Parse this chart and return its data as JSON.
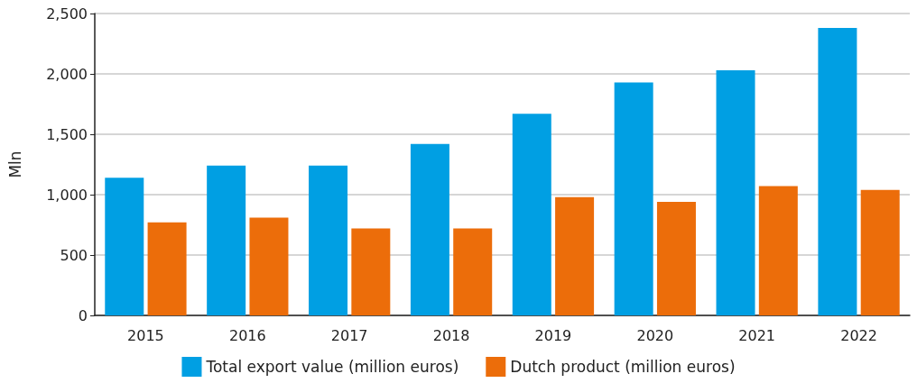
{
  "chart_data": {
    "type": "bar",
    "ylabel": "Mln",
    "categories": [
      "2015",
      "2016",
      "2017",
      "2018",
      "2019",
      "2020",
      "2021",
      "2022"
    ],
    "series": [
      {
        "name": "Total export value (million euros)",
        "color": "#009fe3",
        "values": [
          1140,
          1240,
          1240,
          1420,
          1670,
          1930,
          2030,
          2380
        ]
      },
      {
        "name": "Dutch product (million euros)",
        "color": "#ec6d0a",
        "values": [
          770,
          810,
          720,
          720,
          980,
          940,
          1070,
          1040
        ]
      }
    ],
    "ylim": [
      0,
      2500
    ],
    "yticks": [
      0,
      500,
      {
        "value": 1000,
        "label": "1,000"
      },
      {
        "value": 1500,
        "label": "1,500"
      },
      {
        "value": 2000,
        "label": "2,000"
      },
      {
        "value": 2500,
        "label": "2,500"
      }
    ],
    "grid": "y",
    "legend": "bottom"
  }
}
